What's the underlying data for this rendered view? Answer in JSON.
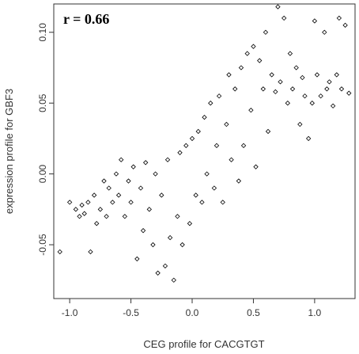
{
  "chart_data": {
    "type": "scatter",
    "title": "",
    "xlabel": "CEG profile for CACGTGT",
    "ylabel": "expression profile for GBF3",
    "annotation": "r = 0.66",
    "xlim": [
      -1.13,
      1.33
    ],
    "ylim": [
      -0.088,
      0.12
    ],
    "x_ticks": [
      -1.0,
      -0.5,
      0.0,
      0.5,
      1.0
    ],
    "x_tick_labels": [
      "-1.0",
      "-0.5",
      "0.0",
      "0.5",
      "1.0"
    ],
    "y_ticks": [
      -0.05,
      0.0,
      0.05,
      0.1
    ],
    "y_tick_labels": [
      "-0.05",
      "0.00",
      "0.05",
      "0.10"
    ],
    "grid": false,
    "legend": "none",
    "marker": "open-diamond",
    "marker_color": "#000000",
    "series": [
      {
        "points": [
          [
            -1.08,
            -0.055
          ],
          [
            -1.0,
            -0.02
          ],
          [
            -0.95,
            -0.025
          ],
          [
            -0.92,
            -0.03
          ],
          [
            -0.9,
            -0.022
          ],
          [
            -0.88,
            -0.028
          ],
          [
            -0.85,
            -0.02
          ],
          [
            -0.83,
            -0.055
          ],
          [
            -0.8,
            -0.015
          ],
          [
            -0.78,
            -0.035
          ],
          [
            -0.75,
            -0.025
          ],
          [
            -0.72,
            -0.005
          ],
          [
            -0.7,
            -0.03
          ],
          [
            -0.68,
            -0.01
          ],
          [
            -0.65,
            -0.02
          ],
          [
            -0.62,
            0.0
          ],
          [
            -0.6,
            -0.015
          ],
          [
            -0.58,
            0.01
          ],
          [
            -0.55,
            -0.03
          ],
          [
            -0.52,
            -0.005
          ],
          [
            -0.5,
            -0.02
          ],
          [
            -0.48,
            0.005
          ],
          [
            -0.45,
            -0.06
          ],
          [
            -0.42,
            -0.01
          ],
          [
            -0.4,
            -0.04
          ],
          [
            -0.38,
            0.008
          ],
          [
            -0.35,
            -0.025
          ],
          [
            -0.32,
            -0.05
          ],
          [
            -0.3,
            0.0
          ],
          [
            -0.28,
            -0.07
          ],
          [
            -0.25,
            -0.015
          ],
          [
            -0.22,
            -0.065
          ],
          [
            -0.2,
            0.01
          ],
          [
            -0.18,
            -0.045
          ],
          [
            -0.15,
            -0.075
          ],
          [
            -0.12,
            -0.03
          ],
          [
            -0.1,
            0.015
          ],
          [
            -0.08,
            -0.05
          ],
          [
            -0.05,
            0.02
          ],
          [
            -0.02,
            -0.035
          ],
          [
            0.0,
            0.025
          ],
          [
            0.03,
            -0.015
          ],
          [
            0.05,
            0.03
          ],
          [
            0.08,
            -0.02
          ],
          [
            0.1,
            0.04
          ],
          [
            0.12,
            0.0
          ],
          [
            0.15,
            0.05
          ],
          [
            0.18,
            -0.01
          ],
          [
            0.2,
            0.02
          ],
          [
            0.22,
            0.055
          ],
          [
            0.25,
            -0.02
          ],
          [
            0.28,
            0.035
          ],
          [
            0.3,
            0.07
          ],
          [
            0.32,
            0.01
          ],
          [
            0.35,
            0.06
          ],
          [
            0.38,
            -0.005
          ],
          [
            0.4,
            0.075
          ],
          [
            0.42,
            0.02
          ],
          [
            0.45,
            0.085
          ],
          [
            0.48,
            0.045
          ],
          [
            0.5,
            0.09
          ],
          [
            0.52,
            0.005
          ],
          [
            0.55,
            0.08
          ],
          [
            0.58,
            0.06
          ],
          [
            0.6,
            0.1
          ],
          [
            0.62,
            0.03
          ],
          [
            0.65,
            0.07
          ],
          [
            0.68,
            0.058
          ],
          [
            0.7,
            0.118
          ],
          [
            0.72,
            0.065
          ],
          [
            0.75,
            0.11
          ],
          [
            0.78,
            0.05
          ],
          [
            0.8,
            0.085
          ],
          [
            0.82,
            0.06
          ],
          [
            0.85,
            0.075
          ],
          [
            0.88,
            0.035
          ],
          [
            0.9,
            0.068
          ],
          [
            0.92,
            0.055
          ],
          [
            0.95,
            0.025
          ],
          [
            0.98,
            0.05
          ],
          [
            1.0,
            0.108
          ],
          [
            1.02,
            0.07
          ],
          [
            1.05,
            0.055
          ],
          [
            1.08,
            0.1
          ],
          [
            1.1,
            0.06
          ],
          [
            1.12,
            0.065
          ],
          [
            1.15,
            0.048
          ],
          [
            1.18,
            0.07
          ],
          [
            1.2,
            0.11
          ],
          [
            1.22,
            0.06
          ],
          [
            1.25,
            0.105
          ],
          [
            1.28,
            0.057
          ]
        ]
      }
    ]
  }
}
